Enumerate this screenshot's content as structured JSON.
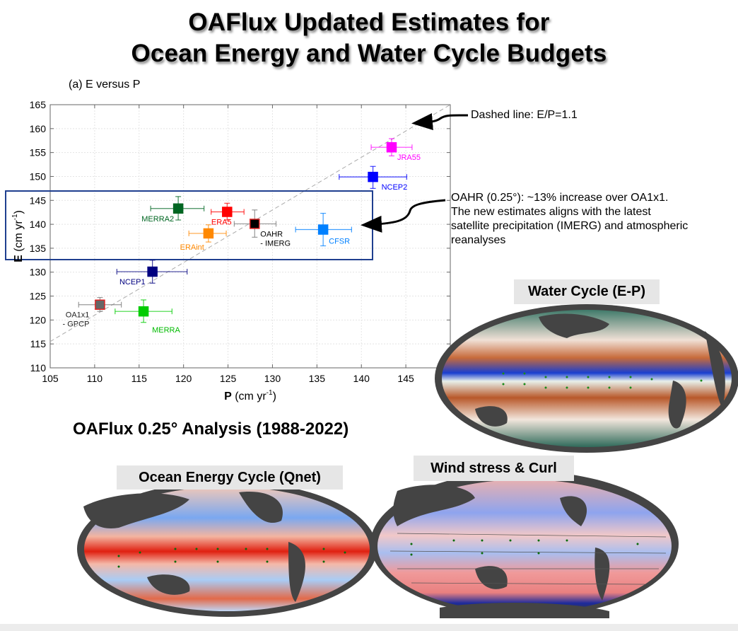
{
  "title": {
    "line1": "OAFlux Updated Estimates for",
    "line2": "Ocean Energy and Water Cycle Budgets"
  },
  "annotations": {
    "dashed_line": "Dashed line: E/P=1.1",
    "oahr_note": [
      "OAHR (0.25°): ~13% increase over OA1x1.",
      "The new estimates aligns with the latest",
      "satellite precipitation (IMERG) and atmospheric",
      "reanalyses"
    ]
  },
  "analysis_title": "OAFlux 0.25° Analysis (1988-2022)",
  "maps": {
    "water_cycle": "Water Cycle (E-P)",
    "energy_cycle": "Ocean Energy Cycle (Qnet)",
    "wind_stress": "Wind stress & Curl"
  },
  "colors": {
    "highlight_box": "#1f3f8f",
    "ref_line": "#aaaaaa"
  },
  "chart_data": {
    "type": "scatter",
    "title": "(a) E versus P",
    "xlabel": "P (cm yr-1)",
    "ylabel": "E (cm yr-1)",
    "xlabel_bold": "P",
    "xlabel_rest": " (cm yr",
    "ylabel_bold": "E",
    "ylabel_rest": " (cm yr",
    "unit_sup": "-1",
    "unit_close": ")",
    "xlim": [
      105,
      150
    ],
    "ylim": [
      110,
      165
    ],
    "xticks": [
      105,
      110,
      115,
      120,
      125,
      130,
      135,
      140,
      145
    ],
    "yticks": [
      110,
      115,
      120,
      125,
      130,
      135,
      140,
      145,
      150,
      155,
      160,
      165
    ],
    "grid": true,
    "reference_line": {
      "label": "E/P=1.1",
      "slope": 1.1
    },
    "highlight_range_E": [
      132.5,
      145.8
    ],
    "series": [
      {
        "name": "OA1x1 - GPCP",
        "label_lines": [
          "OA1x1",
          "- GPCP"
        ],
        "P": 110.6,
        "E": 123.2,
        "P_err": [
          108.2,
          113.0
        ],
        "E_err": [
          121.8,
          124.7
        ],
        "color": "#666666",
        "edge": "#dd2222",
        "label_color": "#222222"
      },
      {
        "name": "MERRA",
        "label_lines": [
          "MERRA"
        ],
        "P": 115.5,
        "E": 121.8,
        "P_err": [
          112.3,
          118.7
        ],
        "E_err": [
          119.5,
          124.2
        ],
        "color": "#00cc00",
        "edge": "#00cc00",
        "label_color": "#00bb00"
      },
      {
        "name": "NCEP1",
        "label_lines": [
          "NCEP1"
        ],
        "P": 116.5,
        "E": 130.1,
        "P_err": [
          112.5,
          120.4
        ],
        "E_err": [
          127.7,
          132.5
        ],
        "color": "#000080",
        "edge": "#000080",
        "label_color": "#000080"
      },
      {
        "name": "MERRA2",
        "label_lines": [
          "MERRA2"
        ],
        "P": 119.4,
        "E": 143.3,
        "P_err": [
          116.3,
          122.3
        ],
        "E_err": [
          140.9,
          145.8
        ],
        "color": "#006622",
        "edge": "#006622",
        "label_color": "#006622"
      },
      {
        "name": "ERAint",
        "label_lines": [
          "ERAint"
        ],
        "P": 122.8,
        "E": 138.1,
        "P_err": [
          120.6,
          124.8
        ],
        "E_err": [
          136.3,
          139.9
        ],
        "color": "#ff8800",
        "edge": "#ff8800",
        "label_color": "#ff8800"
      },
      {
        "name": "ERA5",
        "label_lines": [
          "ERA5"
        ],
        "P": 124.9,
        "E": 142.6,
        "P_err": [
          123.1,
          126.8
        ],
        "E_err": [
          140.9,
          144.4
        ],
        "color": "#ff0000",
        "edge": "#ff0000",
        "label_color": "#ff0000"
      },
      {
        "name": "OAHR - IMERG",
        "label_lines": [
          "OAHR",
          "- IMERG"
        ],
        "P": 128.0,
        "E": 140.1,
        "P_err": [
          125.7,
          130.4
        ],
        "E_err": [
          137.3,
          143.0
        ],
        "color": "#000000",
        "edge": "#dd2222",
        "label_color": "#000000"
      },
      {
        "name": "CFSR",
        "label_lines": [
          "CFSR"
        ],
        "P": 135.7,
        "E": 138.9,
        "P_err": [
          132.6,
          138.9
        ],
        "E_err": [
          135.5,
          142.3
        ],
        "color": "#0080ff",
        "edge": "#0080ff",
        "label_color": "#0080ff"
      },
      {
        "name": "NCEP2",
        "label_lines": [
          "NCEP2"
        ],
        "P": 141.3,
        "E": 149.9,
        "P_err": [
          137.5,
          145.1
        ],
        "E_err": [
          147.5,
          152.1
        ],
        "color": "#0000ff",
        "edge": "#0000ff",
        "label_color": "#0000ff"
      },
      {
        "name": "JRA55",
        "label_lines": [
          "JRA55"
        ],
        "P": 143.4,
        "E": 156.1,
        "P_err": [
          141.1,
          145.7
        ],
        "E_err": [
          154.3,
          157.9
        ],
        "color": "#ff00ff",
        "edge": "#ff00ff",
        "label_color": "#ff00ff"
      }
    ]
  }
}
